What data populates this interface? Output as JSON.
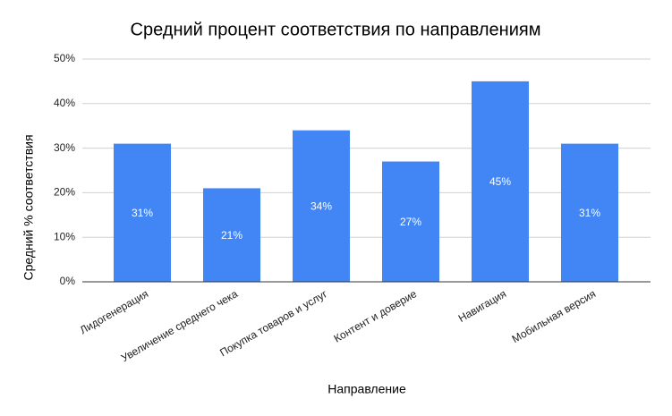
{
  "chart_data": {
    "type": "bar",
    "title": "Средний процент соответствия по направлениям",
    "x_label": "Направление",
    "y_label": "Средний % соответствия",
    "categories": [
      "Лидогенерация",
      "Увеличение среднего чека",
      "Покупка товаров и услуг",
      "Контент и доверие",
      "Навигация",
      "Мобильная версия"
    ],
    "values": [
      31,
      21,
      34,
      27,
      45,
      31
    ],
    "value_labels": [
      "31%",
      "21%",
      "34%",
      "27%",
      "45%",
      "31%"
    ],
    "color": "#4285f4",
    "ylim": [
      0,
      50
    ],
    "yticks": [
      {
        "value": 0,
        "label": "0%"
      },
      {
        "value": 10,
        "label": "10%"
      },
      {
        "value": 20,
        "label": "20%"
      },
      {
        "value": 30,
        "label": "30%"
      },
      {
        "value": 40,
        "label": "40%"
      },
      {
        "value": 50,
        "label": "50%"
      }
    ],
    "grid": true
  }
}
